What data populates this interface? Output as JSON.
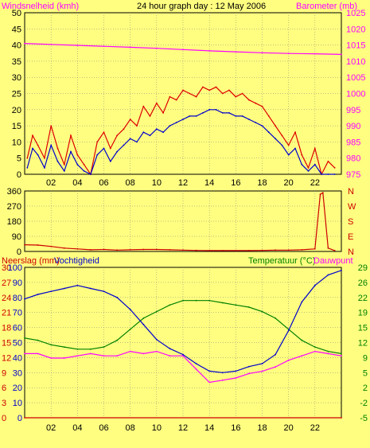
{
  "colors": {
    "background": "#fffe80",
    "axis": "#000000",
    "grid": "#808080",
    "wind_avg": "#0000cc",
    "wind_gust": "#dd0000",
    "barometer": "#ff00ff",
    "direction": "#cc0000",
    "rain": "#cc0000",
    "humidity": "#0000cc",
    "temperature": "#008000",
    "dewpoint": "#ff00ff"
  },
  "header": {
    "left_label": "Windsnelheid (kmh)",
    "title": "24 hour graph day : 12 May 2006",
    "right_label": "Barometer (mb)"
  },
  "bottom_header": {
    "left_label_a": "Neerslag (mm)",
    "left_label_b": "Vochtigheid",
    "right_label_a": "Temperatuur (°C)",
    "right_label_b": "Dauwpunt"
  },
  "chart_data": [
    {
      "type": "line",
      "title": "24 hour graph day : 12 May 2006",
      "xlabel": "",
      "x_tick_labels": [
        "02",
        "04",
        "06",
        "08",
        "10",
        "12",
        "14",
        "16",
        "18",
        "20",
        "22"
      ],
      "x_range_hours": [
        0,
        24
      ],
      "y_left": {
        "label": "Windsnelheid (kmh)",
        "range": [
          0,
          50
        ],
        "ticks": [
          "0",
          "5",
          "10",
          "15",
          "20",
          "25",
          "30",
          "35",
          "40",
          "45",
          "50"
        ]
      },
      "y_right": {
        "label": "Barometer (mb)",
        "range": [
          975,
          1025
        ],
        "ticks": [
          "975",
          "980",
          "985",
          "990",
          "995",
          "1000",
          "1005",
          "1010",
          "1015",
          "1020",
          "1025"
        ]
      },
      "grid": true,
      "series": [
        {
          "axis": "left",
          "x": [
            0.2,
            0.6,
            1,
            1.5,
            2,
            2.5,
            3,
            3.5,
            4,
            4.5,
            5,
            5.5,
            6,
            6.5,
            7,
            7.5,
            8,
            8.5,
            9,
            9.5,
            10,
            10.5,
            11,
            11.5,
            12,
            12.5,
            13,
            13.5,
            14,
            14.5,
            15,
            15.5,
            16,
            16.5,
            17,
            17.5,
            18,
            18.5,
            19,
            19.5,
            20,
            20.5,
            21,
            21.5,
            22,
            22.5,
            23,
            23.5
          ],
          "values": [
            2,
            8,
            6,
            2,
            9,
            4,
            1,
            7,
            3,
            1,
            0,
            6,
            8,
            4,
            7,
            9,
            11,
            10,
            13,
            12,
            14,
            13,
            15,
            16,
            17,
            18,
            18,
            19,
            20,
            20,
            19,
            19,
            18,
            18,
            17,
            16,
            15,
            13,
            11,
            9,
            6,
            8,
            3,
            1,
            3,
            0,
            0,
            0
          ]
        },
        {
          "axis": "left",
          "x": [
            0.2,
            0.6,
            1,
            1.5,
            2,
            2.5,
            3,
            3.5,
            4,
            4.5,
            5,
            5.5,
            6,
            6.5,
            7,
            7.5,
            8,
            8.5,
            9,
            9.5,
            10,
            10.5,
            11,
            11.5,
            12,
            12.5,
            13,
            13.5,
            14,
            14.5,
            15,
            15.5,
            16,
            16.5,
            17,
            17.5,
            18,
            18.5,
            19,
            19.5,
            20,
            20.5,
            21,
            21.5,
            22,
            22.5,
            23,
            23.5
          ],
          "values": [
            5,
            12,
            9,
            5,
            15,
            8,
            3,
            12,
            6,
            3,
            0,
            10,
            13,
            8,
            12,
            14,
            17,
            15,
            21,
            18,
            22,
            19,
            24,
            23,
            26,
            25,
            24,
            27,
            26,
            27,
            25,
            26,
            24,
            25,
            23,
            22,
            21,
            18,
            15,
            12,
            9,
            13,
            6,
            2,
            8,
            0,
            4,
            2
          ]
        },
        {
          "axis": "right",
          "x": [
            0,
            2,
            4,
            6,
            8,
            10,
            12,
            14,
            16,
            18,
            20,
            22,
            24
          ],
          "values": [
            1015.5,
            1015.2,
            1014.9,
            1014.6,
            1014.3,
            1014,
            1013.6,
            1013.2,
            1012.9,
            1012.6,
            1012.4,
            1012.3,
            1012.1
          ]
        }
      ]
    },
    {
      "type": "line",
      "x_range_hours": [
        0,
        24
      ],
      "y_left": {
        "range": [
          0,
          360
        ],
        "ticks": [
          "0",
          "90",
          "180",
          "270",
          "360"
        ]
      },
      "y_right_labels": [
        "N",
        "W",
        "S",
        "E",
        "N"
      ],
      "grid": true,
      "series": [
        {
          "axis": "left",
          "x": [
            0,
            1,
            2,
            3,
            4,
            5,
            6,
            7,
            8,
            9,
            10,
            11,
            12,
            13,
            14,
            15,
            16,
            17,
            18,
            19,
            20,
            21,
            22,
            22.4,
            22.6,
            23,
            23.5
          ],
          "values": [
            40,
            38,
            30,
            20,
            15,
            10,
            12,
            8,
            10,
            12,
            12,
            10,
            8,
            6,
            5,
            5,
            5,
            5,
            6,
            8,
            8,
            10,
            15,
            340,
            350,
            20,
            5
          ]
        }
      ]
    },
    {
      "type": "line",
      "x_range_hours": [
        0,
        24
      ],
      "x_tick_labels": [
        "02",
        "04",
        "06",
        "08",
        "10",
        "12",
        "14",
        "16",
        "18",
        "20",
        "22"
      ],
      "y_left_rain": {
        "label": "Neerslag (mm)",
        "range": [
          0,
          30
        ],
        "ticks": [
          "0",
          "3",
          "6",
          "9",
          "12",
          "15",
          "18",
          "21",
          "24",
          "27",
          "30"
        ]
      },
      "y_left_humidity": {
        "label": "Vochtigheid",
        "range": [
          0,
          100
        ],
        "ticks": [
          "0",
          "10",
          "20",
          "30",
          "40",
          "50",
          "60",
          "70",
          "80",
          "90",
          "100"
        ]
      },
      "y_right": {
        "label": "Temperatuur (°C)",
        "label_2": "Dauwpunt",
        "range": [
          -5,
          29
        ],
        "ticks": [
          "-5",
          "-2",
          "2",
          "5",
          "9",
          "12",
          "15",
          "19",
          "22",
          "26",
          "29"
        ]
      },
      "grid": true,
      "series": [
        {
          "axis": "humidity",
          "x": [
            0,
            1,
            2,
            3,
            4,
            5,
            6,
            7,
            8,
            9,
            10,
            11,
            12,
            13,
            14,
            15,
            16,
            17,
            18,
            19,
            20,
            21,
            22,
            23,
            24
          ],
          "values": [
            79,
            82,
            84,
            86,
            88,
            86,
            84,
            80,
            72,
            62,
            52,
            46,
            42,
            36,
            31,
            30,
            31,
            34,
            36,
            42,
            58,
            77,
            88,
            95,
            98
          ]
        },
        {
          "axis": "temperature",
          "x": [
            0,
            1,
            2,
            3,
            4,
            5,
            6,
            7,
            8,
            9,
            10,
            11,
            12,
            13,
            14,
            15,
            16,
            17,
            18,
            19,
            20,
            21,
            22,
            23,
            24
          ],
          "values": [
            13,
            12.5,
            11.5,
            11,
            10.5,
            10.5,
            11,
            12.5,
            15,
            17.5,
            19,
            20.5,
            21.5,
            21.5,
            21.5,
            21,
            20.5,
            20,
            19,
            17.5,
            15,
            12.5,
            11,
            10,
            9.5
          ]
        },
        {
          "axis": "temperature",
          "x": [
            0,
            1,
            2,
            3,
            4,
            5,
            6,
            7,
            8,
            9,
            10,
            11,
            12,
            13,
            14,
            15,
            16,
            17,
            18,
            19,
            20,
            21,
            22,
            23,
            24
          ],
          "values": [
            9.5,
            9.5,
            8.5,
            8.5,
            9,
            9.5,
            9,
            9,
            10,
            9.5,
            10,
            9,
            9,
            6,
            3,
            3.5,
            4,
            5,
            5.5,
            6.5,
            8,
            9,
            10,
            9.5,
            9
          ]
        },
        {
          "axis": "rain",
          "x": [
            0,
            24
          ],
          "values": [
            0,
            0
          ]
        }
      ]
    }
  ]
}
